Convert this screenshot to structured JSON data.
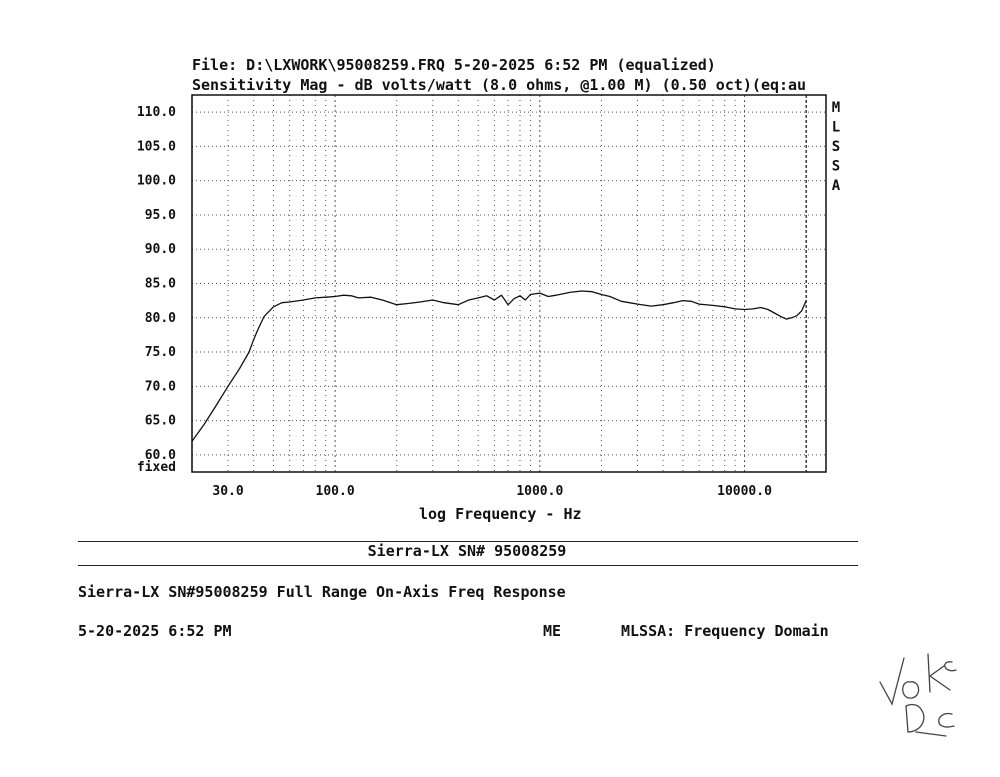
{
  "header": {
    "file_line": "File: D:\\LXWORK\\95008259.FRQ 5-20-2025 6:52 PM (equalized)",
    "sensitivity_line": "Sensitivity Mag - dB volts/watt (8.0 ohms, @1.00 M) (0.50 oct)(eq:au"
  },
  "side_label": [
    "M",
    "L",
    "S",
    "S",
    "A"
  ],
  "bottom_rule_title": "Sierra-LX SN# 95008259",
  "footer": {
    "description": "Sierra-LX SN#95008259 Full Range On-Axis Freq Response",
    "date": "5-20-2025 6:52 PM",
    "operator": "ME",
    "mode": "MLSSA: Frequency Domain"
  },
  "signature_text": "VOK DC",
  "chart_data": {
    "type": "line",
    "title": "",
    "xlabel": "log Frequency - Hz",
    "ylabel": "",
    "x_scale": "log",
    "xlim": [
      20,
      25000
    ],
    "ylim": [
      57.5,
      112.5
    ],
    "x_tick_labels": [
      {
        "value": 30,
        "label": "30.0"
      },
      {
        "value": 100,
        "label": "100.0"
      },
      {
        "value": 1000,
        "label": "1000.0"
      },
      {
        "value": 10000,
        "label": "10000.0"
      }
    ],
    "y_ticks": [
      60,
      65,
      70,
      75,
      80,
      85,
      90,
      95,
      100,
      105,
      110
    ],
    "y_tick_labels": [
      "60.0",
      "65.0",
      "70.0",
      "75.0",
      "80.0",
      "85.0",
      "90.0",
      "95.0",
      "100.0",
      "105.0",
      "110.0"
    ],
    "y_bottom_label": "fixed",
    "grid": true,
    "limit_lines_hz": [
      20,
      20000
    ],
    "colors": {
      "line": "#111111",
      "grid": "#555555"
    },
    "series": [
      {
        "x": [
          20,
          23,
          26,
          30,
          34,
          38,
          40,
          42,
          45,
          50,
          55,
          60,
          70,
          80,
          90,
          100,
          110,
          120,
          130,
          150,
          170,
          200,
          230,
          260,
          300,
          340,
          400,
          450,
          500,
          550,
          600,
          650,
          700,
          750,
          800,
          850,
          900,
          1000,
          1100,
          1200,
          1400,
          1600,
          1800,
          2000,
          2200,
          2500,
          3000,
          3500,
          4000,
          4500,
          5000,
          5500,
          6000,
          7000,
          8000,
          9000,
          10000,
          11000,
          12000,
          13000,
          14000,
          15000,
          16000,
          17000,
          18000,
          19000,
          20000
        ],
        "y": [
          62.0,
          64.5,
          67.0,
          70.0,
          72.5,
          75.0,
          76.8,
          78.3,
          80.2,
          81.6,
          82.2,
          82.3,
          82.6,
          82.9,
          83.0,
          83.1,
          83.3,
          83.2,
          82.9,
          83.0,
          82.6,
          81.9,
          82.1,
          82.3,
          82.6,
          82.2,
          81.9,
          82.6,
          82.9,
          83.2,
          82.6,
          83.3,
          81.9,
          82.8,
          83.2,
          82.6,
          83.4,
          83.6,
          83.1,
          83.3,
          83.7,
          83.9,
          83.8,
          83.4,
          83.1,
          82.4,
          82.0,
          81.7,
          81.9,
          82.2,
          82.5,
          82.4,
          82.0,
          81.8,
          81.6,
          81.3,
          81.2,
          81.3,
          81.5,
          81.2,
          80.7,
          80.2,
          79.8,
          80.0,
          80.3,
          81.0,
          82.5
        ]
      }
    ]
  }
}
